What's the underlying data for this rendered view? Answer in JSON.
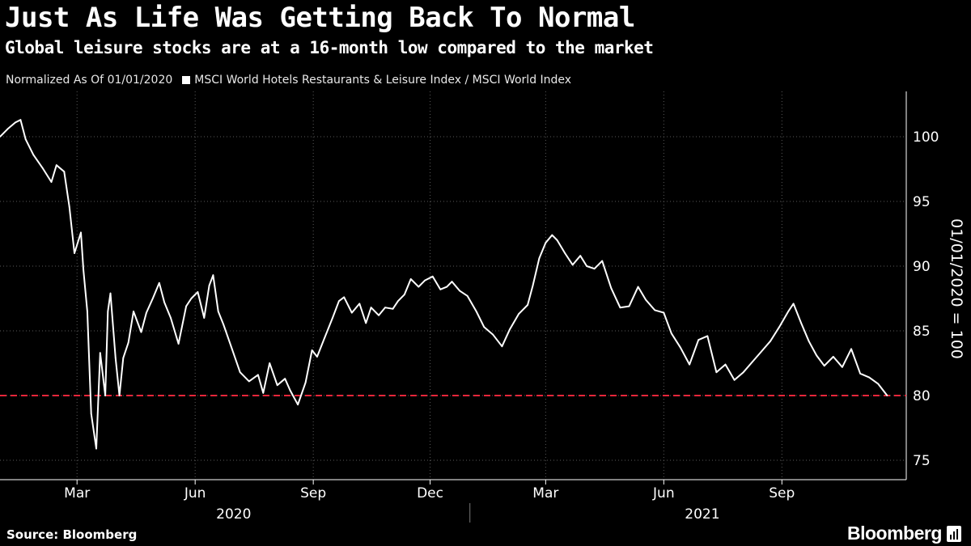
{
  "header": {
    "title": "Just As Life Was Getting Back To Normal",
    "subtitle": "Global leisure stocks are at a 16-month low compared to the market"
  },
  "legend": {
    "note": "Normalized As Of 01/01/2020",
    "series_label": "MSCI World Hotels Restaurants & Leisure Index / MSCI World Index"
  },
  "footer": {
    "source": "Source: Bloomberg",
    "brand": "Bloomberg"
  },
  "colors": {
    "background": "#000000",
    "series": "#ffffff",
    "reference_line": "#e8263a",
    "grid": "#5a5a5a"
  },
  "chart_data": {
    "type": "line",
    "title": "Just As Life Was Getting Back To Normal",
    "subtitle": "Global leisure stocks are at a 16-month low compared to the market",
    "ylabel": "01/01/2020 = 100",
    "ylim": [
      73.5,
      103.5
    ],
    "yticks": [
      75,
      80,
      85,
      90,
      95,
      100
    ],
    "x_range": [
      "2020-01-01",
      "2021-11-23"
    ],
    "x_ticks": [
      {
        "date": "2020-03-01",
        "label": "Mar"
      },
      {
        "date": "2020-06-01",
        "label": "Jun"
      },
      {
        "date": "2020-09-01",
        "label": "Sep"
      },
      {
        "date": "2020-12-01",
        "label": "Dec"
      },
      {
        "date": "2021-03-01",
        "label": "Mar"
      },
      {
        "date": "2021-06-01",
        "label": "Jun"
      },
      {
        "date": "2021-09-01",
        "label": "Sep"
      }
    ],
    "year_labels": [
      {
        "date": "2020-07-01",
        "label": "2020"
      },
      {
        "date": "2021-07-01",
        "label": "2021"
      }
    ],
    "grid": "dotted horizontal and vertical",
    "reference_line": {
      "y": 80,
      "style": "dashed",
      "color": "#e8263a"
    },
    "series": [
      {
        "name": "MSCI World Hotels Restaurants & Leisure Index / MSCI World Index",
        "color": "#ffffff",
        "points": [
          [
            "2020-01-01",
            100.0
          ],
          [
            "2020-01-07",
            100.6
          ],
          [
            "2020-01-13",
            101.1
          ],
          [
            "2020-01-17",
            101.3
          ],
          [
            "2020-01-21",
            99.8
          ],
          [
            "2020-01-27",
            98.6
          ],
          [
            "2020-02-03",
            97.6
          ],
          [
            "2020-02-10",
            96.5
          ],
          [
            "2020-02-14",
            97.8
          ],
          [
            "2020-02-20",
            97.3
          ],
          [
            "2020-02-24",
            94.6
          ],
          [
            "2020-02-28",
            91.0
          ],
          [
            "2020-03-04",
            92.6
          ],
          [
            "2020-03-06",
            89.7
          ],
          [
            "2020-03-09",
            86.5
          ],
          [
            "2020-03-12",
            78.6
          ],
          [
            "2020-03-16",
            75.9
          ],
          [
            "2020-03-19",
            83.3
          ],
          [
            "2020-03-23",
            80.0
          ],
          [
            "2020-03-25",
            86.5
          ],
          [
            "2020-03-27",
            87.9
          ],
          [
            "2020-03-31",
            82.9
          ],
          [
            "2020-04-03",
            80.0
          ],
          [
            "2020-04-06",
            82.9
          ],
          [
            "2020-04-10",
            84.1
          ],
          [
            "2020-04-14",
            86.5
          ],
          [
            "2020-04-20",
            84.9
          ],
          [
            "2020-04-24",
            86.4
          ],
          [
            "2020-04-29",
            87.5
          ],
          [
            "2020-05-04",
            88.7
          ],
          [
            "2020-05-08",
            87.2
          ],
          [
            "2020-05-13",
            86.0
          ],
          [
            "2020-05-19",
            84.0
          ],
          [
            "2020-05-25",
            86.9
          ],
          [
            "2020-05-29",
            87.5
          ],
          [
            "2020-06-03",
            88.0
          ],
          [
            "2020-06-08",
            86.0
          ],
          [
            "2020-06-12",
            88.5
          ],
          [
            "2020-06-15",
            89.3
          ],
          [
            "2020-06-19",
            86.5
          ],
          [
            "2020-06-23",
            85.5
          ],
          [
            "2020-06-29",
            83.8
          ],
          [
            "2020-07-06",
            81.8
          ],
          [
            "2020-07-13",
            81.1
          ],
          [
            "2020-07-20",
            81.6
          ],
          [
            "2020-07-24",
            80.2
          ],
          [
            "2020-07-29",
            82.5
          ],
          [
            "2020-08-04",
            80.8
          ],
          [
            "2020-08-10",
            81.3
          ],
          [
            "2020-08-14",
            80.4
          ],
          [
            "2020-08-20",
            79.3
          ],
          [
            "2020-08-26",
            81.0
          ],
          [
            "2020-08-31",
            83.5
          ],
          [
            "2020-09-04",
            83.0
          ],
          [
            "2020-09-10",
            84.5
          ],
          [
            "2020-09-16",
            86.0
          ],
          [
            "2020-09-21",
            87.3
          ],
          [
            "2020-09-25",
            87.6
          ],
          [
            "2020-10-01",
            86.4
          ],
          [
            "2020-10-07",
            87.1
          ],
          [
            "2020-10-12",
            85.6
          ],
          [
            "2020-10-16",
            86.8
          ],
          [
            "2020-10-22",
            86.2
          ],
          [
            "2020-10-27",
            86.8
          ],
          [
            "2020-11-02",
            86.7
          ],
          [
            "2020-11-06",
            87.3
          ],
          [
            "2020-11-11",
            87.8
          ],
          [
            "2020-11-16",
            89.0
          ],
          [
            "2020-11-22",
            88.4
          ],
          [
            "2020-11-27",
            88.9
          ],
          [
            "2020-12-03",
            89.2
          ],
          [
            "2020-12-09",
            88.2
          ],
          [
            "2020-12-14",
            88.4
          ],
          [
            "2020-12-18",
            88.8
          ],
          [
            "2020-12-24",
            88.1
          ],
          [
            "2020-12-30",
            87.7
          ],
          [
            "2021-01-06",
            86.5
          ],
          [
            "2021-01-12",
            85.3
          ],
          [
            "2021-01-19",
            84.7
          ],
          [
            "2021-01-26",
            83.8
          ],
          [
            "2021-02-01",
            85.1
          ],
          [
            "2021-02-08",
            86.3
          ],
          [
            "2021-02-15",
            87.0
          ],
          [
            "2021-02-19",
            88.5
          ],
          [
            "2021-02-24",
            90.6
          ],
          [
            "2021-03-01",
            91.8
          ],
          [
            "2021-03-06",
            92.4
          ],
          [
            "2021-03-10",
            92.0
          ],
          [
            "2021-03-16",
            91.0
          ],
          [
            "2021-03-22",
            90.1
          ],
          [
            "2021-03-28",
            90.8
          ],
          [
            "2021-04-02",
            90.0
          ],
          [
            "2021-04-08",
            89.8
          ],
          [
            "2021-04-14",
            90.4
          ],
          [
            "2021-04-21",
            88.3
          ],
          [
            "2021-04-28",
            86.8
          ],
          [
            "2021-05-05",
            86.9
          ],
          [
            "2021-05-12",
            88.4
          ],
          [
            "2021-05-18",
            87.4
          ],
          [
            "2021-05-25",
            86.6
          ],
          [
            "2021-06-01",
            86.4
          ],
          [
            "2021-06-07",
            84.8
          ],
          [
            "2021-06-14",
            83.7
          ],
          [
            "2021-06-21",
            82.4
          ],
          [
            "2021-06-28",
            84.3
          ],
          [
            "2021-07-05",
            84.6
          ],
          [
            "2021-07-12",
            81.8
          ],
          [
            "2021-07-19",
            82.4
          ],
          [
            "2021-07-26",
            81.2
          ],
          [
            "2021-08-02",
            81.8
          ],
          [
            "2021-08-09",
            82.6
          ],
          [
            "2021-08-16",
            83.4
          ],
          [
            "2021-08-23",
            84.2
          ],
          [
            "2021-08-30",
            85.3
          ],
          [
            "2021-09-06",
            86.5
          ],
          [
            "2021-09-10",
            87.1
          ],
          [
            "2021-09-16",
            85.6
          ],
          [
            "2021-09-22",
            84.2
          ],
          [
            "2021-09-28",
            83.1
          ],
          [
            "2021-10-04",
            82.3
          ],
          [
            "2021-10-11",
            83.0
          ],
          [
            "2021-10-18",
            82.2
          ],
          [
            "2021-10-25",
            83.6
          ],
          [
            "2021-11-01",
            81.7
          ],
          [
            "2021-11-08",
            81.4
          ],
          [
            "2021-11-15",
            80.9
          ],
          [
            "2021-11-22",
            80.0
          ]
        ]
      }
    ]
  }
}
